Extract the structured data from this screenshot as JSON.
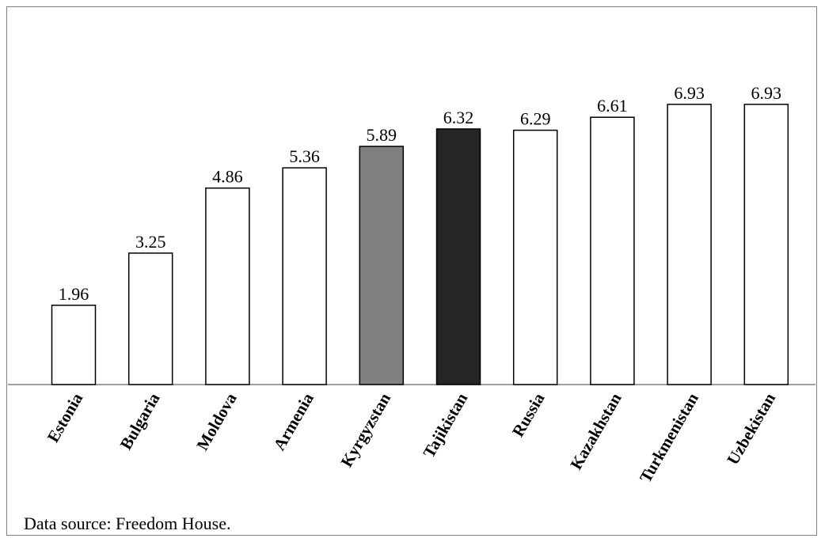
{
  "chart_data": {
    "type": "bar",
    "categories": [
      "Estonia",
      "Bulgaria",
      "Moldova",
      "Armenia",
      "Kyrgyzstan",
      "Tajikistan",
      "Russia",
      "Kazakhstan",
      "Turkmenistan",
      "Uzbekistan"
    ],
    "values": [
      1.96,
      3.25,
      4.86,
      5.36,
      5.89,
      6.32,
      6.29,
      6.61,
      6.93,
      6.93
    ],
    "value_labels": [
      "1.96",
      "3.25",
      "4.86",
      "5.36",
      "5.89",
      "6.32",
      "6.29",
      "6.61",
      "6.93",
      "6.93"
    ],
    "bar_colors": [
      "#ffffff",
      "#ffffff",
      "#ffffff",
      "#ffffff",
      "#808080",
      "#262626",
      "#ffffff",
      "#ffffff",
      "#ffffff",
      "#ffffff"
    ],
    "bar_stroke": "#000000",
    "ylim": [
      0,
      8
    ],
    "y_axis_visible": false,
    "grid": false,
    "legend": "none",
    "title": "",
    "xlabel": "",
    "ylabel": "",
    "tick_label_style": "bold, rotated 60°"
  },
  "footer": {
    "source": "Data source: Freedom House."
  }
}
